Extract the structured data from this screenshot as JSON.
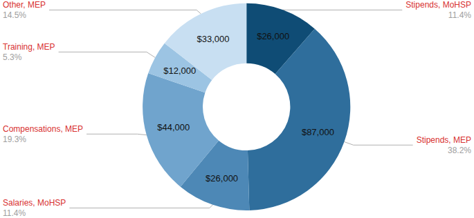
{
  "chart_data": {
    "type": "pie",
    "categories": [
      "Stipends, MoHSP",
      "Stipends, MEP",
      "Salaries, MoHSP",
      "Compensations, MEP",
      "Training, MEP",
      "Other, MEP"
    ],
    "values": [
      26000,
      87000,
      26000,
      44000,
      12000,
      33000
    ],
    "value_labels": [
      "$26,000",
      "$87,000",
      "$26,000",
      "$44,000",
      "$12,000",
      "$33,000"
    ],
    "percentages": [
      {
        "value": 11.4,
        "label": "11.4%"
      },
      {
        "value": 38.2,
        "label": "38.2%"
      },
      {
        "value": 11.4,
        "label": "11.4%"
      },
      {
        "value": 19.3,
        "label": "19.3%"
      },
      {
        "value": 5.3,
        "label": "5.3%"
      },
      {
        "value": 14.5,
        "label": "14.5%"
      }
    ],
    "colors": [
      "#0f4c75",
      "#2f6e9c",
      "#4d88b6",
      "#70a4cd",
      "#9cc4e3",
      "#c8dff2"
    ],
    "data_labels": true
  }
}
